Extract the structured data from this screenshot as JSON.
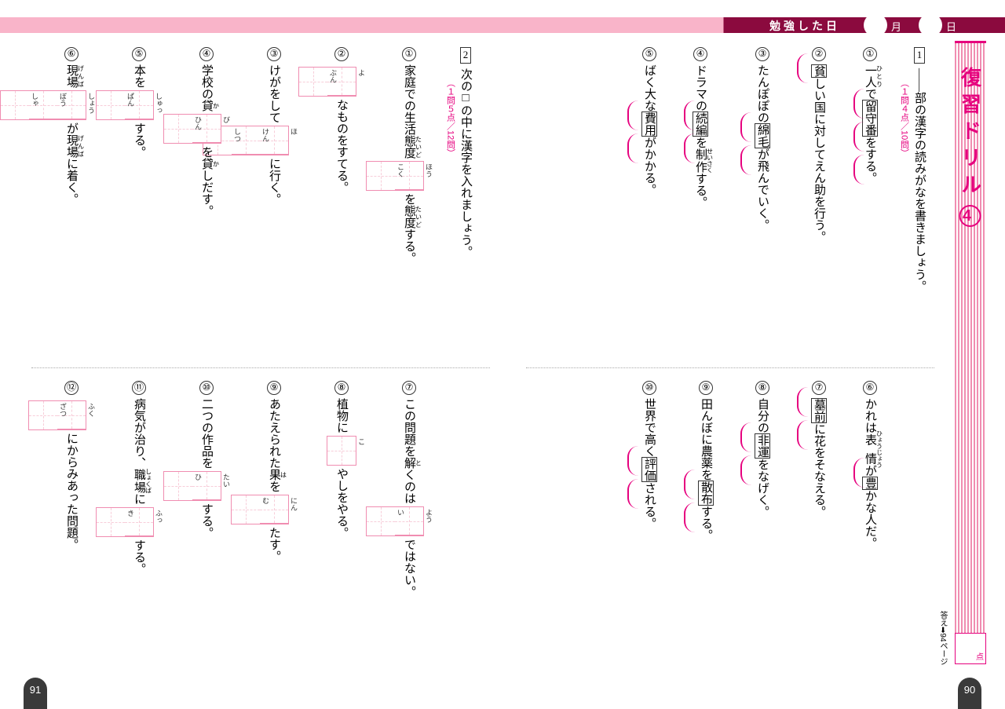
{
  "header": {
    "study_date_label": "勉強した日",
    "month_unit": "月",
    "day_unit": "日"
  },
  "title": {
    "text": "復習ドリル",
    "number": "4"
  },
  "score_label": "点",
  "answer_ref": "答え➡94ページ",
  "page_left": "91",
  "page_right": "90",
  "section1": {
    "num": "1",
    "instruction": "――部の漢字の読みがなを書きましょう。",
    "scoring": "（１問４点／10問）",
    "items_a": [
      {
        "n": "①",
        "pre": "一人で",
        "ruby": "ひとり",
        "target": "留守番",
        "post": "をする。"
      },
      {
        "n": "②",
        "pre": "",
        "target": "貧",
        "mid": "しい国に対してえん助を行う。",
        "post": ""
      },
      {
        "n": "③",
        "pre": "たんぽぽの",
        "target": "綿毛",
        "post": "が飛んでいく。"
      },
      {
        "n": "④",
        "pre": "ドラマの",
        "target": "続編",
        "mid": "を",
        "ruby2": "せいさく",
        "ruby2_base": "制作",
        "post": "する。"
      },
      {
        "n": "⑤",
        "pre": "ばく大な",
        "target": "費用",
        "post": "がかかる。"
      }
    ],
    "items_b": [
      {
        "n": "⑥",
        "pre": "かれは",
        "ruby": "ひょうじょう",
        "ruby_base": "表情",
        "mid": "が",
        "target": "豊",
        "post": "かな人だ。"
      },
      {
        "n": "⑦",
        "pre": "",
        "target": "墓前",
        "post": "に花をそなえる。"
      },
      {
        "n": "⑧",
        "pre": "自分の",
        "target": "非運",
        "post": "をなげく。"
      },
      {
        "n": "⑨",
        "pre": "田んぼに農薬を",
        "target": "散布",
        "post": "する。"
      },
      {
        "n": "⑩",
        "pre": "世界で高く",
        "target": "評価",
        "post": "される。"
      }
    ]
  },
  "section2": {
    "num": "2",
    "instruction": "次の□の中に漢字を入れましょう。",
    "scoring": "（１問５点／12問）",
    "items_a": [
      {
        "n": "①",
        "pre": "家庭での生活",
        "ruby": "たいど",
        "ruby_base": "態度",
        "mid": "を",
        "hints": [
          "ほう",
          "こく"
        ],
        "post": "する。"
      },
      {
        "n": "②",
        "pre": "",
        "hints": [
          "よ",
          "ぶん"
        ],
        "post": "なものをすてる。"
      },
      {
        "n": "③",
        "pre": "けがをして",
        "hints": [
          "ほ",
          "けん",
          "しつ"
        ],
        "post": "に行く。"
      },
      {
        "n": "④",
        "pre": "学校の",
        "hints": [
          "び",
          "ひん"
        ],
        "mid": "を",
        "ruby": "か",
        "ruby_base": "貸",
        "post": "しだす。"
      },
      {
        "n": "⑤",
        "pre": "本を",
        "hints": [
          "しゅっ",
          "ぱん"
        ],
        "post": "する。"
      },
      {
        "n": "⑥",
        "pre": "",
        "hints": [
          "しょう",
          "ぼう",
          "しゃ"
        ],
        "mid": "が",
        "ruby": "げんば",
        "ruby_base": "現場",
        "post": "に着く。"
      }
    ],
    "items_b": [
      {
        "n": "⑦",
        "pre": "この問題を",
        "ruby": "と",
        "ruby_base": "解",
        "mid": "くのは",
        "hints": [
          "よう",
          "い"
        ],
        "post": "ではない。"
      },
      {
        "n": "⑧",
        "pre": "植物に",
        "hints": [
          "こ"
        ],
        "post": "やしをやる。"
      },
      {
        "n": "⑨",
        "pre": "あたえられた",
        "hints": [
          "にん",
          "む"
        ],
        "mid": "を",
        "ruby": "は",
        "ruby_base": "果",
        "post": "たす。"
      },
      {
        "n": "⑩",
        "pre": "二つの作品を",
        "hints": [
          "たい",
          "ひ"
        ],
        "post": "する。"
      },
      {
        "n": "⑪",
        "pre": "病気が治り、",
        "ruby": "しょくば",
        "ruby_base": "職場",
        "mid": "に",
        "hints": [
          "ふっ",
          "き"
        ],
        "post": "する。"
      },
      {
        "n": "⑫",
        "pre": "",
        "hints": [
          "ふく",
          "ざつ"
        ],
        "post": "にからみあった問題。"
      }
    ]
  }
}
